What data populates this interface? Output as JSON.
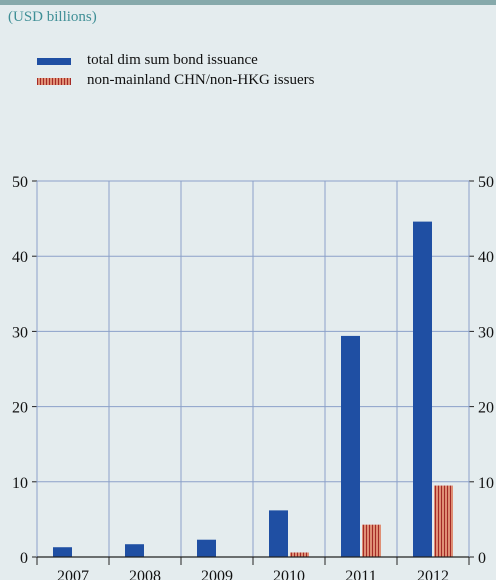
{
  "units_label": "(USD billions)",
  "colors": {
    "total": "#1f4fa3",
    "non_mainland": "#df8f75",
    "non_mainland_stripe": "#a42a26",
    "grid": "#8ba0c9",
    "units_text": "#3f8f96"
  },
  "chart_data": {
    "type": "bar",
    "categories": [
      "2007",
      "2008",
      "2009",
      "2010",
      "2011",
      "2012"
    ],
    "series": [
      {
        "name": "total dim sum bond issuance",
        "values": [
          1.3,
          1.7,
          2.3,
          6.2,
          29.4,
          44.6
        ]
      },
      {
        "name": "non-mainland CHN/non-HKG issuers",
        "values": [
          0,
          0,
          0,
          0.6,
          4.3,
          9.5
        ]
      }
    ],
    "ylim": [
      0,
      50
    ],
    "yticks": [
      0,
      10,
      20,
      30,
      40,
      50
    ],
    "grid": true,
    "legend": "top-left",
    "title": "",
    "xlabel": "",
    "ylabel": ""
  }
}
